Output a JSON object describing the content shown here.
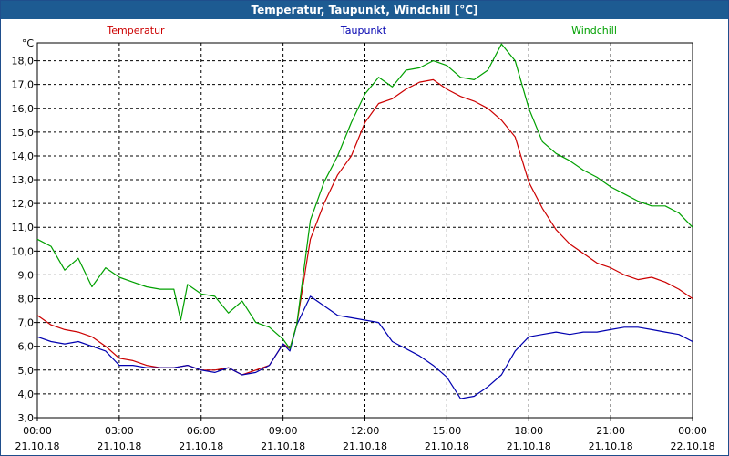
{
  "window": {
    "title": "Temperatur, Taupunkt, Windchill [°C]"
  },
  "chart_data": {
    "type": "line",
    "title": "Temperatur, Taupunkt, Windchill [°C]",
    "ylabel": "°C",
    "xlabel": "",
    "ylim": [
      3.0,
      18.75
    ],
    "xlim_hours": [
      0,
      24
    ],
    "y_ticks": [
      "3,0",
      "4,0",
      "5,0",
      "6,0",
      "7,0",
      "8,0",
      "9,0",
      "10,0",
      "11,0",
      "12,0",
      "13,0",
      "14,0",
      "15,0",
      "16,0",
      "17,0",
      "18,0"
    ],
    "x_ticks": [
      {
        "time": "00:00",
        "date": "21.10.18"
      },
      {
        "time": "03:00",
        "date": "21.10.18"
      },
      {
        "time": "06:00",
        "date": "21.10.18"
      },
      {
        "time": "09:00",
        "date": "21.10.18"
      },
      {
        "time": "12:00",
        "date": "21.10.18"
      },
      {
        "time": "15:00",
        "date": "21.10.18"
      },
      {
        "time": "18:00",
        "date": "21.10.18"
      },
      {
        "time": "21:00",
        "date": "21.10.18"
      },
      {
        "time": "00:00",
        "date": "22.10.18"
      }
    ],
    "grid": true,
    "legend_position": "top",
    "series": [
      {
        "name": "Temperatur",
        "color": "#cc0000",
        "x": [
          0,
          0.5,
          1,
          1.5,
          2,
          2.5,
          3,
          3.5,
          4,
          4.5,
          5,
          5.5,
          6,
          6.5,
          7,
          7.5,
          8,
          8.5,
          9,
          9.25,
          9.5,
          10,
          10.5,
          11,
          11.5,
          12,
          12.5,
          13,
          13.5,
          14,
          14.5,
          15,
          15.5,
          16,
          16.5,
          17,
          17.5,
          18,
          18.5,
          19,
          19.5,
          20,
          20.5,
          21,
          21.5,
          22,
          22.5,
          23,
          23.5,
          24
        ],
        "y": [
          7.3,
          6.9,
          6.7,
          6.6,
          6.4,
          6.0,
          5.5,
          5.4,
          5.2,
          5.1,
          5.1,
          5.2,
          5.0,
          5.0,
          5.1,
          4.8,
          5.0,
          5.2,
          6.1,
          5.9,
          6.9,
          10.5,
          12.0,
          13.2,
          14.0,
          15.4,
          16.2,
          16.4,
          16.8,
          17.1,
          17.2,
          16.8,
          16.5,
          16.3,
          16.0,
          15.5,
          14.8,
          12.9,
          11.8,
          10.9,
          10.3,
          9.9,
          9.5,
          9.3,
          9.0,
          8.8,
          8.9,
          8.7,
          8.4,
          8.0
        ]
      },
      {
        "name": "Taupunkt",
        "color": "#0000b0",
        "x": [
          0,
          0.5,
          1,
          1.5,
          2,
          2.5,
          3,
          3.5,
          4,
          4.5,
          5,
          5.5,
          6,
          6.5,
          7,
          7.5,
          8,
          8.5,
          9,
          9.25,
          9.5,
          10,
          10.5,
          11,
          11.5,
          12,
          12.5,
          13,
          13.5,
          14,
          14.5,
          15,
          15.5,
          16,
          16.5,
          17,
          17.5,
          18,
          18.5,
          19,
          19.5,
          20,
          20.5,
          21,
          21.5,
          22,
          22.5,
          23,
          23.5,
          24
        ],
        "y": [
          6.4,
          6.2,
          6.1,
          6.2,
          6.0,
          5.8,
          5.2,
          5.2,
          5.1,
          5.1,
          5.1,
          5.2,
          5.0,
          4.9,
          5.1,
          4.8,
          4.9,
          5.2,
          6.1,
          5.8,
          6.9,
          8.1,
          7.7,
          7.3,
          7.2,
          7.1,
          7.0,
          6.2,
          5.9,
          5.6,
          5.2,
          4.7,
          3.8,
          3.9,
          4.3,
          4.8,
          5.8,
          6.4,
          6.5,
          6.6,
          6.5,
          6.6,
          6.6,
          6.7,
          6.8,
          6.8,
          6.7,
          6.6,
          6.5,
          6.2
        ]
      },
      {
        "name": "Windchill",
        "color": "#00a000",
        "x": [
          0,
          0.5,
          1,
          1.5,
          2,
          2.5,
          3,
          3.5,
          4,
          4.5,
          5,
          5.25,
          5.5,
          6,
          6.5,
          7,
          7.5,
          8,
          8.5,
          9,
          9.25,
          9.5,
          10,
          10.5,
          11,
          11.5,
          12,
          12.5,
          13,
          13.5,
          14,
          14.5,
          15,
          15.5,
          16,
          16.5,
          17,
          17.5,
          18,
          18.5,
          19,
          19.5,
          20,
          20.5,
          21,
          21.5,
          22,
          22.5,
          23,
          23.5,
          24
        ],
        "y": [
          10.5,
          10.2,
          9.2,
          9.7,
          8.5,
          9.3,
          8.9,
          8.7,
          8.5,
          8.4,
          8.4,
          7.1,
          8.6,
          8.2,
          8.1,
          7.4,
          7.9,
          7.0,
          6.8,
          6.3,
          5.9,
          6.9,
          11.3,
          12.9,
          14.0,
          15.4,
          16.6,
          17.3,
          16.9,
          17.6,
          17.7,
          18.0,
          17.8,
          17.3,
          17.2,
          17.6,
          18.7,
          18.0,
          16.0,
          14.6,
          14.1,
          13.8,
          13.4,
          13.1,
          12.7,
          12.4,
          12.1,
          11.9,
          11.9,
          11.6,
          11.0
        ]
      }
    ]
  }
}
